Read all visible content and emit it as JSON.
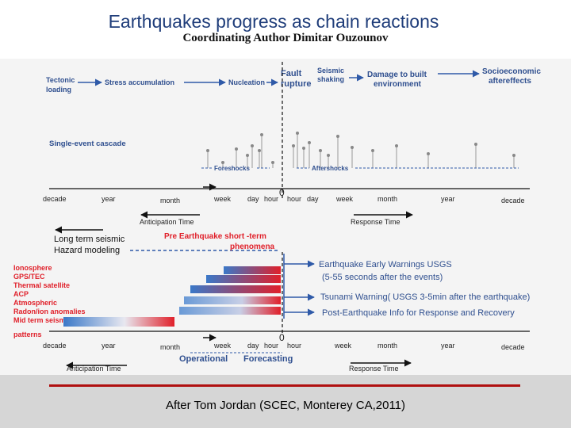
{
  "title": "Earthquakes progress as chain reactions",
  "subtitle": "Coordinating Author  Dimitar Ouzounov",
  "citation": "After Tom Jordan (SCEC, Monterey CA,2011)",
  "chain": {
    "tectonic": [
      "Tectonic",
      "loading"
    ],
    "stress": "Stress accumulation",
    "nucleation": "Nucleation",
    "fault": [
      "Fault",
      "rupture"
    ],
    "seismic": [
      "Seismic",
      "shaking"
    ],
    "damage": [
      "Damage to built",
      "environment"
    ],
    "socio": [
      "Socioeconomic",
      "aftereffects"
    ]
  },
  "cascade_label": "Single-event cascade",
  "foreshocks_label": "Foreshocks",
  "aftershocks_label": "Aftershocks",
  "timeline_top": {
    "decade_l": "decade",
    "year_l": "year",
    "month_l": "month",
    "week_l": "week",
    "day_l": "day",
    "hour_l": "hour",
    "zero": "0",
    "hour_r": "hour",
    "day_r": "day",
    "week_r": "week",
    "month_r": "month",
    "year_r": "year",
    "decade_r": "decade"
  },
  "anticipation_time": "Anticipation Time",
  "response_time": "Response Time",
  "long_term": [
    "Long term seismic",
    "Hazard modeling"
  ],
  "pre_eq": [
    "Pre Earthquake short -term",
    "phenomena"
  ],
  "methods": [
    "Ionosphere",
    "GPS/TEC",
    "Thermal satellite",
    "ACP",
    "Atmospheric",
    "Radon/ion anomalies",
    "Mid term seismic",
    "patterns"
  ],
  "warnings": {
    "early": [
      "Earthquake Early Warnings USGS",
      "(5-55 seconds after the  events)"
    ],
    "tsunami": "Tsunami Warning( USGS 3-5min  after the earthquake)",
    "post": "Post-Earthquake Info for Response and Recovery"
  },
  "timeline_bottom": {
    "decade_l": "decade",
    "year_l": "year",
    "month_l": "month",
    "week_l": "week",
    "day_l": "day",
    "hour_l": "hour",
    "zero": "0",
    "week_r": "week",
    "month_r": "month",
    "year_r": "year",
    "decade_r": "decade"
  },
  "operational": "Operational",
  "forecasting": "Forecasting",
  "anticipation_time_bottom": "Anticipation Time",
  "response_time_bottom": "Response Time",
  "colors": {
    "accent": "#1f3d7a",
    "red": "#e0202a",
    "blue": "#3a78c8",
    "arrow": "#2f5aa8"
  }
}
